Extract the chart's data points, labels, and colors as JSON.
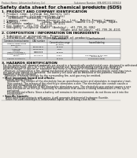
{
  "bg_color": "#f0ede8",
  "header_top_left": "Product Name: Lithium Ion Battery Cell",
  "header_top_right": "Substance Number: SPA-KMC332-009618\nEstablished / Revision: Dec.7.2009",
  "title": "Safety data sheet for chemical products (SDS)",
  "section1_title": "1. PRODUCT AND COMPANY IDENTIFICATION",
  "section1_lines": [
    " • Product name: Lithium Ion Battery Cell",
    " • Product code: CylindricalType (set)",
    "    SIR86500J, SIR18650L, SIR18650A",
    " • Company name:     Sanyo Electric Co., Ltd., Mobile Energy Company",
    " • Address:              2001, Kamishinden, Sumoto-City, Hyogo, Japan",
    " • Telephone number:   +81-799-26-4111",
    " • Fax number: +81-799-26-4120",
    " • Emergency telephone number (Weekday): +81-799-26-3862",
    "                                   (Night and holiday): +81-799-26-4131"
  ],
  "section2_title": "2. COMPOSITION / INFORMATION ON INGREDIENTS",
  "section2_lines": [
    " • Substance or preparation: Preparation",
    " • Information about the chemical nature of product:"
  ],
  "table_headers": [
    "Common chemical name",
    "CAS number",
    "Concentration /\nConcentration range",
    "Classification and\nhazard labeling"
  ],
  "table_rows": [
    [
      "Lithium cobalt oxide\n(LiMnCoO₄)",
      "-",
      "(30-45%)",
      ""
    ],
    [
      "Iron",
      "26389-88-8",
      "15-20%",
      ""
    ],
    [
      "Aluminum",
      "74309-90-8",
      "2.0%",
      ""
    ],
    [
      "Graphite\n(Natu.al graphite-I)\n(Artificial graphite-I)",
      "7782-42-5\n7782-44-2",
      "10-20%",
      ""
    ],
    [
      "Copper",
      "7440-50-8",
      "5-15%",
      "Sensitization of the skin\ngroup No.2"
    ],
    [
      "Organic electrolyte",
      "-",
      "10-20%",
      "Flammable liquid"
    ]
  ],
  "row_heights": [
    5.0,
    3.5,
    3.5,
    6.5,
    5.5,
    3.5
  ],
  "section3_title": "3. HAZARDS IDENTIFICATION",
  "section3_para": [
    "  For the battery cell, chemical materials are stored in a hermetically sealed metal case, designed to withstand",
    "  temperatures from -40°C to +70°C during normal use. As a result, during normal use, there is no",
    "  physical danger of ignition or aspiration and there is no danger of hazardous materials leakage.",
    "    However, if exposed to a fire, added mechanical shocks, decompose, when electrolyte vents may issue,",
    "  the gas inside cannot be operated. The battery cell case will be breached of fire-patients, hazardous",
    "  materials may be released.",
    "    Moreover, if heated strongly by the surrounding fire, acid gas may be emitted."
  ],
  "section3_bullet1": " • Most important hazard and effects:",
  "section3_health": [
    "     Human health effects:",
    "       Inhalation: The release of the electrolyte has an anesthesia action and stimulates in respiratory tract.",
    "       Skin contact: The release of the electrolyte stimulates a skin. The electrolyte skin contact causes a",
    "       sore and stimulation on the skin.",
    "       Eye contact: The release of the electrolyte stimulates eyes. The electrolyte eye contact causes a sore",
    "       and stimulation on the eye. Especially, a substance that causes a strong inflammation of the eye is",
    "       contained.",
    "       Environmental effects: Since a battery cell remains in the environment, do not throw out it into the",
    "       environment."
  ],
  "section3_bullet2": " • Specific hazards:",
  "section3_specific": [
    "     If the electrolyte contacts with water, it will generate detrimental hydrogen fluoride.",
    "     Since the used electrolyte is Inflammable liquid, do not bring close to fire."
  ]
}
